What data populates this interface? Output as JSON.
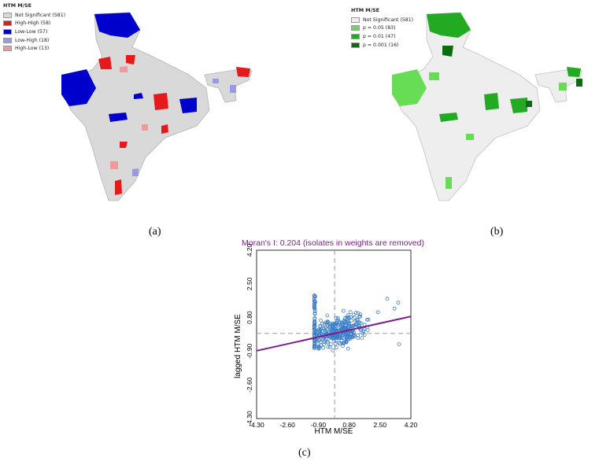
{
  "panels": {
    "a": {
      "caption": "(a)",
      "legend_title": "HTM M/SE",
      "legend": [
        {
          "label": "Not Significant (581)",
          "color": "#d9d9d9"
        },
        {
          "label": "High-High (58)",
          "color": "#e41a1c"
        },
        {
          "label": "Low-Low (57)",
          "color": "#0000cc"
        },
        {
          "label": "Low-High (18)",
          "color": "#9999e8"
        },
        {
          "label": "High-Low (13)",
          "color": "#ef9a9a"
        }
      ]
    },
    "b": {
      "caption": "(b)",
      "legend_title": "HTM M/SE",
      "legend": [
        {
          "label": "Not Significant (581)",
          "color": "#eeeeee"
        },
        {
          "label": "p = 0.05 (83)",
          "color": "#66dd55"
        },
        {
          "label": "p = 0.01 (47)",
          "color": "#22aa22"
        },
        {
          "label": "p = 0.001 (16)",
          "color": "#0f6b0f"
        }
      ]
    },
    "c": {
      "caption": "(c)"
    }
  },
  "chart_data": {
    "type": "scatter",
    "title": "Moran's I: 0.204 (isolates in weights are removed)",
    "xlabel": "HTM M/SE",
    "ylabel": "lagged HTM M/SE",
    "xlim": [
      -4.3,
      4.2
    ],
    "ylim": [
      -4.3,
      4.2
    ],
    "xticks": [
      "-4.30",
      "-2.60",
      "-0.90",
      "0.80",
      "2.50",
      "4.20"
    ],
    "yticks": [
      "-4.30",
      "-2.60",
      "-0.90",
      "0.80",
      "2.50",
      "4.20"
    ],
    "moran_i": 0.204,
    "regression_slope": 0.204,
    "colors": {
      "points": "#3a7dc9",
      "line": "#7b1f8a",
      "title": "#7b1f8a",
      "guides": "#999999"
    },
    "points_vertical_cluster_x": -1.1,
    "points_vertical_cluster_yrange": [
      -0.75,
      1.95
    ],
    "points_cloud_center": [
      0.2,
      0.15
    ],
    "points_cloud_count": 320
  }
}
